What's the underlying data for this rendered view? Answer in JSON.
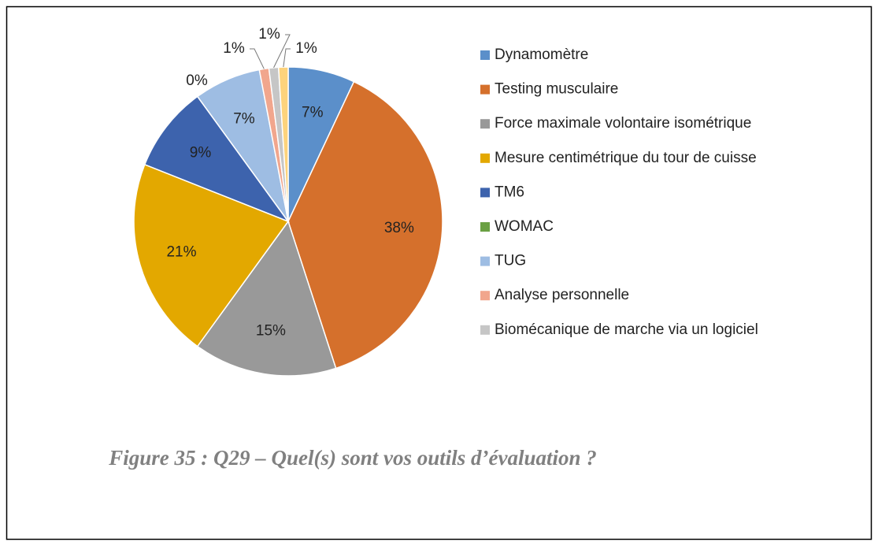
{
  "chart_data": {
    "type": "pie",
    "caption": "Figure 35 : Q29 – Quel(s) sont vos outils d’évaluation ?",
    "categories": [
      "Dynamomètre",
      "Testing musculaire",
      "Force maximale volontaire isométrique",
      "Mesure centimétrique du tour de cuisse",
      "TM6",
      "WOMAC",
      "TUG",
      "Analyse personnelle",
      "Biomécanique de marche via un logiciel",
      null
    ],
    "values": [
      7,
      38,
      15,
      21,
      9,
      0,
      7,
      1,
      1,
      1
    ],
    "value_labels": [
      "7%",
      "38%",
      "15%",
      "21%",
      "9%",
      "0%",
      "7%",
      "1%",
      "1%",
      "1%"
    ],
    "colors": [
      "#5b8fca",
      "#d5702c",
      "#999999",
      "#e3a800",
      "#3d63ad",
      "#6aa043",
      "#9ebde3",
      "#f1a68d",
      "#c6c6c6",
      "#fdd37c"
    ],
    "legend": "right"
  }
}
